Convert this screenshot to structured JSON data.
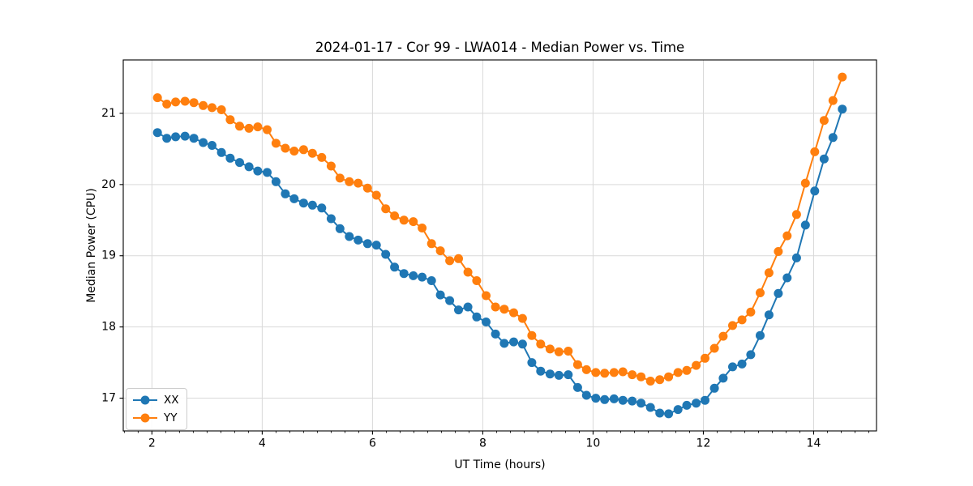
{
  "chart_data": {
    "type": "line",
    "title": "2024-01-17 - Cor 99 - LWA014 - Median Power vs. Time",
    "xlabel": "UT Time (hours)",
    "ylabel": "Median Power (CPU)",
    "xlim": [
      1.48,
      15.14
    ],
    "ylim": [
      16.54,
      21.75
    ],
    "xticks": [
      2,
      4,
      6,
      8,
      10,
      12,
      14
    ],
    "yticks": [
      17,
      18,
      19,
      20,
      21
    ],
    "x_minor_tick_step": 0.25,
    "grid": true,
    "grid_color": "#d9d9d9",
    "legend_position": "lower left",
    "marker": "circle",
    "x": [
      2.1,
      2.27,
      2.43,
      2.6,
      2.76,
      2.93,
      3.09,
      3.26,
      3.42,
      3.59,
      3.76,
      3.92,
      4.09,
      4.25,
      4.42,
      4.58,
      4.75,
      4.91,
      5.08,
      5.25,
      5.41,
      5.58,
      5.74,
      5.91,
      6.07,
      6.24,
      6.4,
      6.57,
      6.74,
      6.9,
      7.07,
      7.23,
      7.4,
      7.56,
      7.73,
      7.89,
      8.06,
      8.23,
      8.39,
      8.56,
      8.72,
      8.89,
      9.05,
      9.22,
      9.38,
      9.55,
      9.72,
      9.88,
      10.05,
      10.21,
      10.38,
      10.54,
      10.71,
      10.87,
      11.04,
      11.21,
      11.37,
      11.54,
      11.7,
      11.87,
      12.03,
      12.2,
      12.36,
      12.53,
      12.7,
      12.86,
      13.03,
      13.19,
      13.36,
      13.52,
      13.69,
      13.85,
      14.02,
      14.19,
      14.35,
      14.52
    ],
    "series": [
      {
        "name": "XX",
        "color": "#1f77b4",
        "values": [
          20.73,
          20.65,
          20.67,
          20.68,
          20.65,
          20.59,
          20.55,
          20.45,
          20.37,
          20.31,
          20.25,
          20.19,
          20.17,
          20.04,
          19.87,
          19.8,
          19.74,
          19.71,
          19.67,
          19.52,
          19.38,
          19.27,
          19.22,
          19.17,
          19.15,
          19.02,
          18.84,
          18.75,
          18.72,
          18.7,
          18.65,
          18.45,
          18.37,
          18.24,
          18.28,
          18.14,
          18.07,
          17.9,
          17.77,
          17.79,
          17.76,
          17.5,
          17.38,
          17.34,
          17.32,
          17.33,
          17.15,
          17.04,
          17.0,
          16.98,
          16.99,
          16.97,
          16.96,
          16.93,
          16.87,
          16.79,
          16.78,
          16.84,
          16.9,
          16.93,
          16.97,
          17.14,
          17.28,
          17.44,
          17.48,
          17.61,
          17.88,
          18.17,
          18.47,
          18.69,
          18.97,
          19.43,
          19.91,
          20.36,
          20.66,
          21.06
        ]
      },
      {
        "name": "YY",
        "color": "#ff7f0e",
        "values": [
          21.22,
          21.13,
          21.16,
          21.17,
          21.15,
          21.11,
          21.08,
          21.05,
          20.91,
          20.82,
          20.79,
          20.81,
          20.77,
          20.58,
          20.51,
          20.47,
          20.49,
          20.44,
          20.38,
          20.26,
          20.09,
          20.04,
          20.02,
          19.95,
          19.85,
          19.66,
          19.56,
          19.5,
          19.48,
          19.39,
          19.17,
          19.07,
          18.93,
          18.96,
          18.77,
          18.65,
          18.44,
          18.28,
          18.25,
          18.2,
          18.12,
          17.88,
          17.76,
          17.69,
          17.65,
          17.66,
          17.47,
          17.4,
          17.36,
          17.35,
          17.36,
          17.37,
          17.33,
          17.3,
          17.24,
          17.26,
          17.3,
          17.36,
          17.39,
          17.46,
          17.56,
          17.7,
          17.87,
          18.02,
          18.1,
          18.21,
          18.48,
          18.76,
          19.06,
          19.28,
          19.58,
          20.02,
          20.46,
          20.9,
          21.18,
          21.51
        ]
      }
    ]
  }
}
